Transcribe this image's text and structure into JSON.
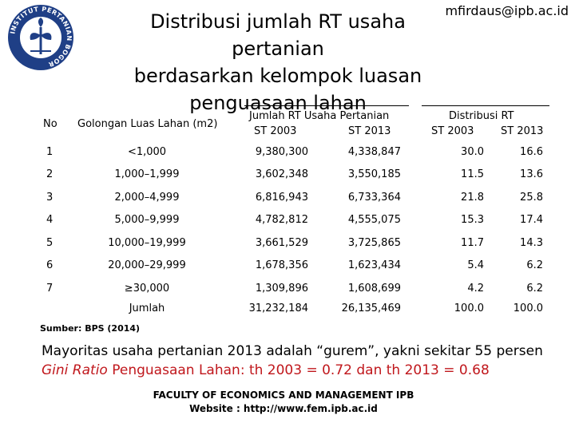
{
  "header": {
    "email": "mfirdaus@ipb.ac.id",
    "title_line1": "Distribusi jumlah RT usaha pertanian",
    "title_line2": "berdasarkan kelompok luasan",
    "title_line3": "penguasaan lahan",
    "logo_text": "INSTITUT PERTANIAN BOGOR"
  },
  "table": {
    "col_no": "No",
    "col_golongan": "Golongan Luas Lahan (m2)",
    "col_group1": "Jumlah RT Usaha Pertanian",
    "col_group2": "Distribusi RT",
    "sub_a": "ST 2003",
    "sub_b": "ST 2013",
    "sub_c": "ST 2003",
    "sub_d": "ST 2013",
    "rows": [
      {
        "no": "1",
        "gol": "<1,000",
        "a": "9,380,300",
        "b": "4,338,847",
        "c": "30.0",
        "d": "16.6"
      },
      {
        "no": "2",
        "gol": "1,000–1,999",
        "a": "3,602,348",
        "b": "3,550,185",
        "c": "11.5",
        "d": "13.6"
      },
      {
        "no": "3",
        "gol": "2,000–4,999",
        "a": "6,816,943",
        "b": "6,733,364",
        "c": "21.8",
        "d": "25.8"
      },
      {
        "no": "4",
        "gol": "5,000–9,999",
        "a": "4,782,812",
        "b": "4,555,075",
        "c": "15.3",
        "d": "17.4"
      },
      {
        "no": "5",
        "gol": "10,000–19,999",
        "a": "3,661,529",
        "b": "3,725,865",
        "c": "11.7",
        "d": "14.3"
      },
      {
        "no": "6",
        "gol": "20,000–29,999",
        "a": "1,678,356",
        "b": "1,623,434",
        "c": "5.4",
        "d": "6.2"
      },
      {
        "no": "7",
        "gol": "≥30,000",
        "a": "1,309,896",
        "b": "1,608,699",
        "c": "4.2",
        "d": "6.2"
      }
    ],
    "total": {
      "label": "Jumlah",
      "a": "31,232,184",
      "b": "26,135,469",
      "c": "100.0",
      "d": "100.0"
    }
  },
  "source": "Sumber: BPS (2014)",
  "notes": {
    "line1": "Mayoritas usaha pertanian 2013 adalah “gurem”, yakni sekitar 55 persen",
    "line2_italic": "Gini Ratio",
    "line2_rest": " Penguasaan Lahan: th 2003 = 0.72 dan th 2013 = 0.68"
  },
  "footer": {
    "line1": "FACULTY OF ECONOMICS AND MANAGEMENT IPB",
    "line2": "Website : http://www.fem.ipb.ac.id"
  },
  "colors": {
    "accent_red": "#c0171c",
    "logo_blue": "#1f3f86"
  }
}
